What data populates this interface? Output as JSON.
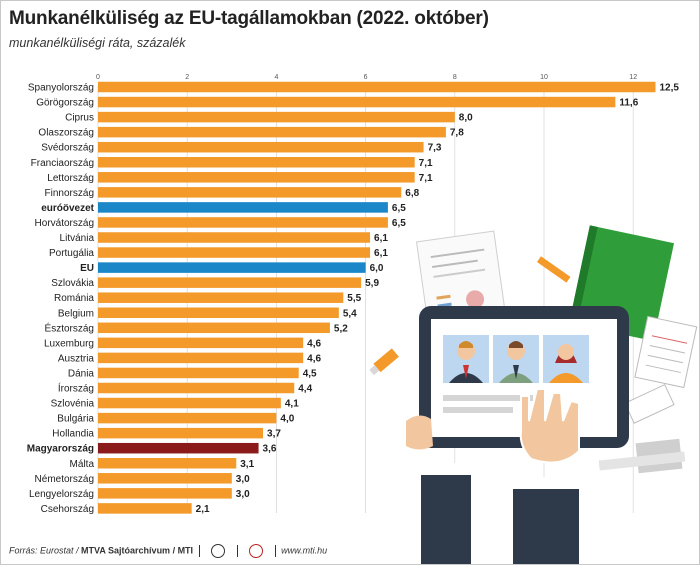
{
  "header": {
    "title": "Munkanélküliség az EU-tagállamokban (2022. október)",
    "subtitle": "munkanélküliségi ráta, százalék"
  },
  "footer": {
    "source": "Forrás: Eurostat /",
    "archive": "MTVA Sajtóarchívum / MTI",
    "site": "www.mti.hu"
  },
  "colors": {
    "bar": "#f39a2a",
    "euro_area": "#1b86c8",
    "eu": "#1b86c8",
    "hungary": "#8b1a1a"
  },
  "chart_data": {
    "type": "bar",
    "orientation": "horizontal",
    "title": "Munkanélküliség az EU-tagállamokban (2022. október)",
    "subtitle": "munkanélküliségi ráta, százalék",
    "xlim": [
      0,
      12.5
    ],
    "xticks": [
      "0",
      "2",
      "4",
      "6",
      "8",
      "10",
      "12"
    ],
    "grid": true,
    "categories": [
      "Spanyolország",
      "Görögország",
      "Ciprus",
      "Olaszország",
      "Svédország",
      "Franciaország",
      "Lettország",
      "Finnország",
      "euróövezet",
      "Horvátország",
      "Litvánia",
      "Portugália",
      "EU",
      "Szlovákia",
      "Románia",
      "Belgium",
      "Észtország",
      "Luxemburg",
      "Ausztria",
      "Dánia",
      "Írország",
      "Szlovénia",
      "Bulgária",
      "Hollandia",
      "Magyarország",
      "Málta",
      "Németország",
      "Lengyelország",
      "Csehország"
    ],
    "values": [
      12.5,
      11.6,
      8.0,
      7.8,
      7.3,
      7.1,
      7.1,
      6.8,
      6.5,
      6.5,
      6.1,
      6.1,
      6.0,
      5.9,
      5.5,
      5.4,
      5.2,
      4.6,
      4.6,
      4.5,
      4.4,
      4.1,
      4.0,
      3.7,
      3.6,
      3.1,
      3.0,
      3.0,
      2.1
    ],
    "value_labels": [
      "12,5",
      "11,6",
      "8,0",
      "7,8",
      "7,3",
      "7,1",
      "7,1",
      "6,8",
      "6,5",
      "6,5",
      "6,1",
      "6,1",
      "6,0",
      "5,9",
      "5,5",
      "5,4",
      "5,2",
      "4,6",
      "4,6",
      "4,5",
      "4,4",
      "4,1",
      "4,0",
      "3,7",
      "3,6",
      "3,1",
      "3,0",
      "3,0",
      "2,1"
    ],
    "highlight": {
      "euróövezet": "euro_area",
      "EU": "eu",
      "Magyarország": "hungary"
    },
    "bold_categories": [
      "euróövezet",
      "EU",
      "Magyarország"
    ]
  }
}
